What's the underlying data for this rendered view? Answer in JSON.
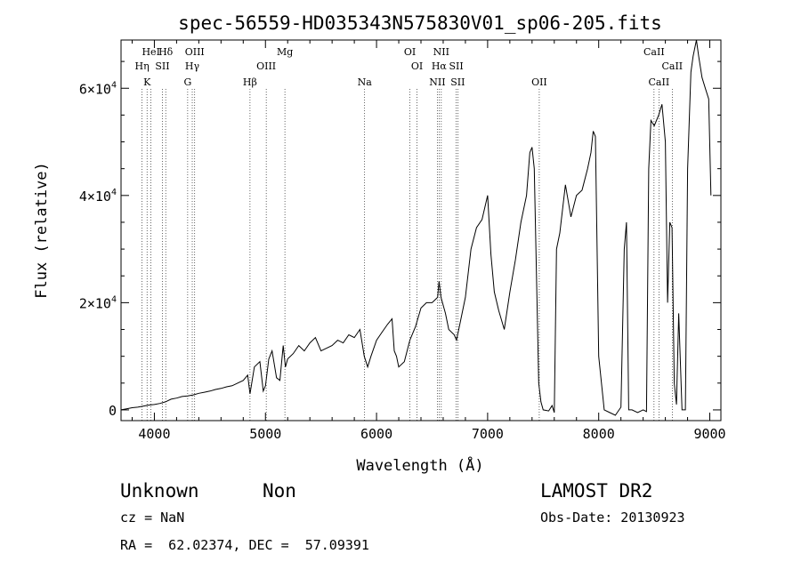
{
  "chart_data": {
    "type": "line",
    "title": "spec-56559-HD035343N575830V01_sp06-205.fits",
    "xlabel": "Wavelength (Å)",
    "ylabel": "Flux (relative)",
    "xlim": [
      3700,
      9100
    ],
    "ylim": [
      -2000,
      69000
    ],
    "x_ticks": [
      4000,
      5000,
      6000,
      7000,
      8000,
      9000
    ],
    "x_tick_labels": [
      "4000",
      "5000",
      "6000",
      "7000",
      "8000",
      "9000"
    ],
    "y_ticks": [
      0,
      20000,
      40000,
      60000
    ],
    "y_tick_labels": [
      {
        "base": "0",
        "exp": ""
      },
      {
        "base": "2×10",
        "exp": "4"
      },
      {
        "base": "4×10",
        "exp": "4"
      },
      {
        "base": "6×10",
        "exp": "4"
      }
    ],
    "series": [
      {
        "x": [
          3700,
          3750,
          3800,
          3850,
          3900,
          3950,
          4000,
          4050,
          4100,
          4150,
          4200,
          4250,
          4300,
          4350,
          4400,
          4450,
          4500,
          4550,
          4600,
          4650,
          4700,
          4750,
          4800,
          4840,
          4861,
          4900,
          4950,
          4980,
          5000,
          5030,
          5060,
          5100,
          5130,
          5160,
          5180,
          5200,
          5250,
          5300,
          5350,
          5400,
          5450,
          5500,
          5550,
          5600,
          5650,
          5700,
          5750,
          5800,
          5850,
          5890,
          5920,
          5950,
          6000,
          6050,
          6100,
          6140,
          6160,
          6180,
          6200,
          6250,
          6300,
          6350,
          6400,
          6450,
          6500,
          6550,
          6563,
          6580,
          6620,
          6650,
          6700,
          6720,
          6750,
          6800,
          6850,
          6900,
          6950,
          7000,
          7030,
          7060,
          7100,
          7150,
          7200,
          7250,
          7300,
          7350,
          7380,
          7400,
          7420,
          7440,
          7460,
          7480,
          7500,
          7550,
          7580,
          7600,
          7620,
          7650,
          7700,
          7750,
          7800,
          7850,
          7900,
          7930,
          7950,
          7970,
          8000,
          8050,
          8100,
          8150,
          8200,
          8230,
          8250,
          8270,
          8300,
          8350,
          8400,
          8430,
          8450,
          8470,
          8500,
          8540,
          8570,
          8600,
          8620,
          8640,
          8660,
          8680,
          8700,
          8720,
          8750,
          8780,
          8800,
          8830,
          8850,
          8880,
          8900,
          8930,
          8960,
          8990,
          9010
        ],
        "y": [
          0,
          200,
          400,
          500,
          700,
          900,
          1000,
          1200,
          1500,
          2000,
          2200,
          2500,
          2600,
          2800,
          3100,
          3300,
          3500,
          3800,
          4000,
          4300,
          4500,
          5000,
          5500,
          6500,
          3000,
          8000,
          9000,
          3500,
          4500,
          9500,
          11000,
          6000,
          5500,
          12000,
          8000,
          9500,
          10500,
          12000,
          11000,
          12500,
          13500,
          11000,
          11500,
          12000,
          13000,
          12500,
          14000,
          13500,
          15000,
          10000,
          8000,
          10000,
          13000,
          14500,
          16000,
          17000,
          11000,
          10000,
          8000,
          9000,
          13000,
          15500,
          19000,
          20000,
          20000,
          21000,
          24000,
          21000,
          18000,
          15000,
          14000,
          13000,
          16000,
          21000,
          30000,
          34000,
          35500,
          40000,
          29000,
          22000,
          18500,
          15000,
          22000,
          28000,
          35000,
          40000,
          48000,
          49000,
          45000,
          25000,
          5000,
          1500,
          0,
          -200,
          800,
          -500,
          30000,
          33000,
          42000,
          36000,
          40000,
          41000,
          45000,
          48000,
          52000,
          51000,
          10000,
          0,
          -500,
          -1000,
          500,
          30000,
          35000,
          0,
          0,
          -500,
          0,
          -300,
          45000,
          54000,
          53000,
          55000,
          57000,
          50000,
          20000,
          35000,
          34000,
          5000,
          1000,
          18000,
          0,
          0,
          45000,
          63000,
          66000,
          69000,
          66000,
          62000,
          60000,
          58000,
          40000
        ]
      }
    ],
    "lines": [
      {
        "wl": 3889,
        "label": "Hη",
        "row": 1
      },
      {
        "wl": 3934,
        "label": "K",
        "row": 2
      },
      {
        "wl": 3970,
        "label": "HeI",
        "row": 0
      },
      {
        "wl": 4072,
        "label": "SII",
        "row": 1
      },
      {
        "wl": 4102,
        "label": "Hδ",
        "row": 0
      },
      {
        "wl": 4300,
        "label": "G",
        "row": 2
      },
      {
        "wl": 4341,
        "label": "Hγ",
        "row": 1
      },
      {
        "wl": 4363,
        "label": "OIII",
        "row": 0
      },
      {
        "wl": 4861,
        "label": "Hβ",
        "row": 2
      },
      {
        "wl": 5007,
        "label": "OIII",
        "row": 1
      },
      {
        "wl": 5175,
        "label": "Mg",
        "row": 0
      },
      {
        "wl": 5893,
        "label": "Na",
        "row": 2
      },
      {
        "wl": 6300,
        "label": "OI",
        "row": 0
      },
      {
        "wl": 6364,
        "label": "OI",
        "row": 1
      },
      {
        "wl": 6548,
        "label": "NII",
        "row": 2
      },
      {
        "wl": 6563,
        "label": "Hα",
        "row": 1
      },
      {
        "wl": 6583,
        "label": "NII",
        "row": 0
      },
      {
        "wl": 6717,
        "label": "SII",
        "row": 1
      },
      {
        "wl": 6731,
        "label": "SII",
        "row": 2
      },
      {
        "wl": 7465,
        "label": "OII",
        "row": 2
      },
      {
        "wl": 8498,
        "label": "CaII",
        "row": 0
      },
      {
        "wl": 8542,
        "label": "CaII",
        "row": 2
      },
      {
        "wl": 8662,
        "label": "CaII",
        "row": 1
      }
    ]
  },
  "info": {
    "class_label": "Unknown",
    "subclass_label": "Non",
    "cz": "cz = NaN",
    "radec": "RA =  62.02374, DEC =  57.09391",
    "survey": "LAMOST DR2",
    "obs_date": "Obs-Date: 20130923"
  }
}
